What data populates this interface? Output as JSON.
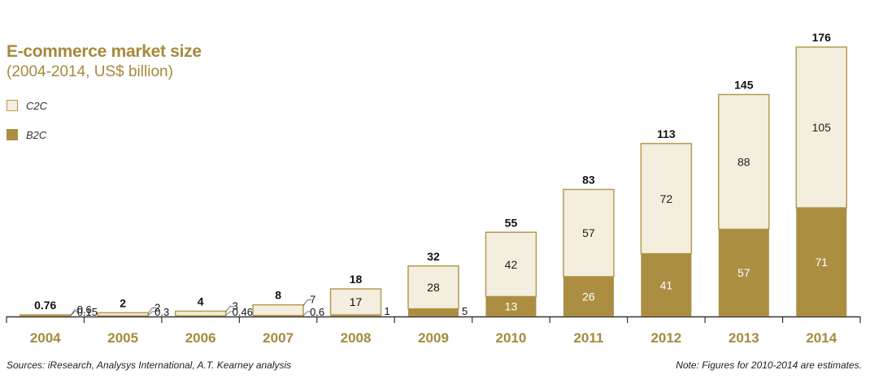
{
  "title": "E-commerce market size",
  "subtitle": "(2004-2014, US$ billion)",
  "colors": {
    "c2c": "#f3eedd",
    "b2c": "#ab8e42",
    "border": "#b59a52",
    "year": "#a68a3c"
  },
  "chart_data": {
    "type": "bar",
    "stacked": true,
    "categories": [
      "2004",
      "2005",
      "2006",
      "2007",
      "2008",
      "2009",
      "2010",
      "2011",
      "2012",
      "2013",
      "2014"
    ],
    "series": [
      {
        "name": "B2C",
        "values": [
          0.15,
          0.3,
          0.46,
          0.6,
          1,
          5,
          13,
          26,
          41,
          57,
          71
        ]
      },
      {
        "name": "C2C",
        "values": [
          0.6,
          2,
          3,
          7,
          17,
          28,
          42,
          57,
          72,
          88,
          105
        ]
      }
    ],
    "series_labels": {
      "B2C": [
        "0.15",
        "0.3",
        "0.46",
        "0.6",
        "1",
        "5",
        "13",
        "26",
        "41",
        "57",
        "71"
      ],
      "C2C": [
        "0.6",
        "2",
        "3",
        "7",
        "17",
        "28",
        "42",
        "57",
        "72",
        "88",
        "105"
      ]
    },
    "totals": [
      "0.76",
      "2",
      "4",
      "8",
      "18",
      "32",
      "55",
      "83",
      "113",
      "145",
      "176"
    ],
    "ylim": [
      0,
      176
    ],
    "legend": "top-left",
    "grid": false
  },
  "footer": {
    "source": "Sources: iResearch, Analysys International, A.T. Kearney analysis",
    "note": "Note: Figures for 2010-2014 are estimates."
  }
}
